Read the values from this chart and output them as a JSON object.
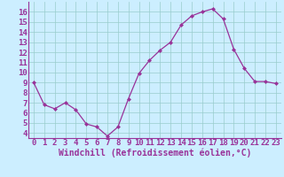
{
  "x": [
    0,
    1,
    2,
    3,
    4,
    5,
    6,
    7,
    8,
    9,
    10,
    11,
    12,
    13,
    14,
    15,
    16,
    17,
    18,
    19,
    20,
    21,
    22,
    23
  ],
  "y": [
    9.0,
    6.8,
    6.4,
    7.0,
    6.3,
    4.9,
    4.6,
    3.7,
    4.6,
    7.4,
    9.9,
    11.2,
    12.2,
    13.0,
    14.7,
    15.6,
    16.0,
    16.3,
    15.3,
    12.3,
    10.4,
    9.1,
    9.1,
    8.9
  ],
  "line_color": "#993399",
  "marker": "D",
  "marker_size": 2,
  "bg_color": "#cceeff",
  "grid_color": "#99cccc",
  "xlabel": "Windchill (Refroidissement éolien,°C)",
  "xlabel_color": "#993399",
  "tick_color": "#993399",
  "spine_color": "#993399",
  "ylim": [
    3.5,
    17.0
  ],
  "xlim": [
    -0.5,
    23.5
  ],
  "yticks": [
    4,
    5,
    6,
    7,
    8,
    9,
    10,
    11,
    12,
    13,
    14,
    15,
    16
  ],
  "xticks": [
    0,
    1,
    2,
    3,
    4,
    5,
    6,
    7,
    8,
    9,
    10,
    11,
    12,
    13,
    14,
    15,
    16,
    17,
    18,
    19,
    20,
    21,
    22,
    23
  ],
  "tick_fontsize": 6.5,
  "xlabel_fontsize": 7.0
}
